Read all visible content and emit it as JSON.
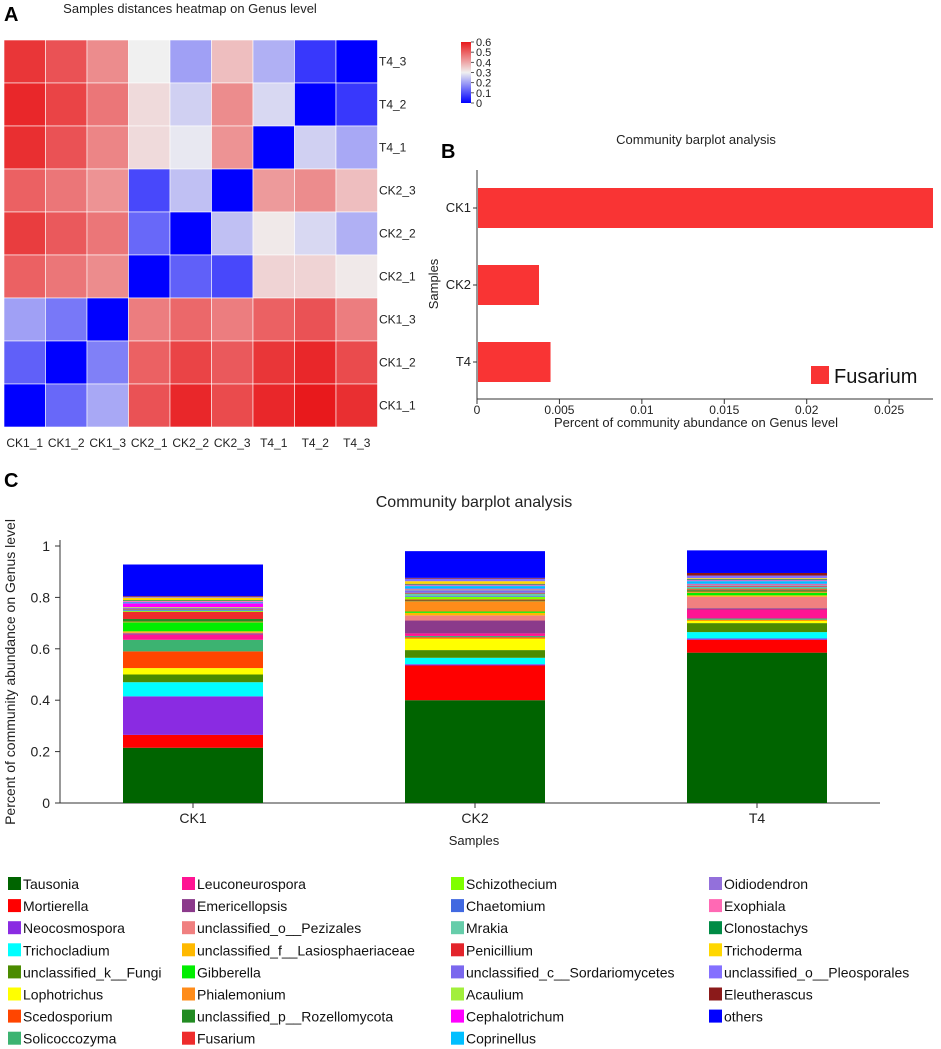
{
  "panels": {
    "a": {
      "letter": "A"
    },
    "b": {
      "letter": "B"
    },
    "c": {
      "letter": "C"
    }
  },
  "chart_data": [
    {
      "type": "heatmap",
      "title": "Samples distances heatmap on Genus level",
      "columns": [
        "CK1_1",
        "CK1_2",
        "CK1_3",
        "CK2_1",
        "CK2_2",
        "CK2_3",
        "T4_1",
        "T4_2",
        "T4_3"
      ],
      "rows": [
        "T4_3",
        "T4_2",
        "T4_1",
        "CK2_3",
        "CK2_2",
        "CK2_1",
        "CK1_3",
        "CK1_2",
        "CK1_1"
      ],
      "values": [
        [
          0.56,
          0.52,
          0.44,
          0.3,
          0.2,
          0.37,
          0.22,
          0.07,
          0.0
        ],
        [
          0.58,
          0.54,
          0.47,
          0.33,
          0.26,
          0.44,
          0.27,
          0.0,
          0.07
        ],
        [
          0.57,
          0.52,
          0.45,
          0.33,
          0.29,
          0.43,
          0.0,
          0.26,
          0.21
        ],
        [
          0.5,
          0.47,
          0.43,
          0.09,
          0.24,
          0.0,
          0.42,
          0.44,
          0.37
        ],
        [
          0.55,
          0.51,
          0.47,
          0.13,
          0.0,
          0.24,
          0.31,
          0.27,
          0.22
        ],
        [
          0.5,
          0.47,
          0.44,
          0.0,
          0.12,
          0.09,
          0.34,
          0.34,
          0.31
        ],
        [
          0.2,
          0.15,
          0.0,
          0.46,
          0.49,
          0.46,
          0.5,
          0.52,
          0.46
        ],
        [
          0.12,
          0.0,
          0.16,
          0.5,
          0.54,
          0.51,
          0.56,
          0.58,
          0.53
        ],
        [
          0.0,
          0.13,
          0.21,
          0.52,
          0.58,
          0.53,
          0.58,
          0.61,
          0.57
        ]
      ],
      "colorbar": {
        "min": 0,
        "max": 0.6,
        "ticks": [
          "0.6",
          "0.5",
          "0.4",
          "0.3",
          "0.2",
          "0.1",
          "0"
        ],
        "low_color": "#0000ff",
        "mid_color": "#f0f0f0",
        "high_color": "#e8191c"
      }
    },
    {
      "type": "bar",
      "orientation": "horizontal",
      "title": "Community barplot analysis",
      "categories": [
        "CK1",
        "CK2",
        "T4"
      ],
      "series": [
        {
          "name": "Fusarium",
          "values": [
            0.0276,
            0.0037,
            0.0044
          ],
          "color": "#f93434"
        }
      ],
      "xlabel": "Percent of community abundance on Genus level",
      "ylabel": "Samples",
      "xlim": [
        0,
        0.0276
      ],
      "xticks": [
        "0",
        "0.005",
        "0.01",
        "0.015",
        "0.02",
        "0.025"
      ],
      "legend_position": "bottom-right"
    },
    {
      "type": "bar",
      "stacked": true,
      "title": "Community barplot analysis",
      "categories": [
        "CK1",
        "CK2",
        "T4"
      ],
      "xlabel": "Samples",
      "ylabel": "Percent of community abundance on Genus level",
      "ylim": [
        0,
        1
      ],
      "yticks": [
        "0",
        "0.2",
        "0.4",
        "0.6",
        "0.8",
        "1"
      ],
      "legend_position": "bottom",
      "series": [
        {
          "name": "Tausonia",
          "color": "#006400",
          "values": [
            0.215,
            0.4,
            0.585
          ]
        },
        {
          "name": "Mortierella",
          "color": "#ff0000",
          "values": [
            0.05,
            0.135,
            0.05
          ]
        },
        {
          "name": "Neocosmospora",
          "color": "#8a2be2",
          "values": [
            0.15,
            0.005,
            0.005
          ]
        },
        {
          "name": "Trichocladium",
          "color": "#00ffff",
          "values": [
            0.055,
            0.025,
            0.025
          ]
        },
        {
          "name": "unclassified_k__Fungi",
          "color": "#4b8b00",
          "values": [
            0.03,
            0.03,
            0.035
          ]
        },
        {
          "name": "Lophotrichus",
          "color": "#ffff00",
          "values": [
            0.025,
            0.045,
            0.01
          ]
        },
        {
          "name": "Scedosporium",
          "color": "#ff4500",
          "values": [
            0.065,
            0.005,
            0.003
          ]
        },
        {
          "name": "Solicoccozyma",
          "color": "#3cb371",
          "values": [
            0.045,
            0.005,
            0.005
          ]
        },
        {
          "name": "Leuconeurospora",
          "color": "#ff1493",
          "values": [
            0.02,
            0.01,
            0.035
          ]
        },
        {
          "name": "Emericellopsis",
          "color": "#8b3a8b",
          "values": [
            0.005,
            0.05,
            0.005
          ]
        },
        {
          "name": "unclassified_o__Pezizales",
          "color": "#f08080",
          "values": [
            0.003,
            0.02,
            0.045
          ]
        },
        {
          "name": "unclassified_f__Lasiosphaeriaceae",
          "color": "#ffb900",
          "values": [
            0.005,
            0.01,
            0.005
          ]
        },
        {
          "name": "Gibberella",
          "color": "#00ee00",
          "values": [
            0.035,
            0.005,
            0.01
          ]
        },
        {
          "name": "Phialemonium",
          "color": "#ff8c1a",
          "values": [
            0.003,
            0.04,
            0.005
          ]
        },
        {
          "name": "unclassified_p__Rozellomycota",
          "color": "#228b22",
          "values": [
            0.01,
            0.003,
            0.005
          ]
        },
        {
          "name": "Fusarium",
          "color": "#ee2c2c",
          "values": [
            0.028,
            0.004,
            0.004
          ]
        },
        {
          "name": "Schizothecium",
          "color": "#7fff00",
          "values": [
            0.003,
            0.01,
            0.003
          ]
        },
        {
          "name": "Chaetomium",
          "color": "#4169e1",
          "values": [
            0.003,
            0.003,
            0.003
          ]
        },
        {
          "name": "Mrakia",
          "color": "#66cdaa",
          "values": [
            0.003,
            0.01,
            0.003
          ]
        },
        {
          "name": "Penicillium",
          "color": "#e3242b",
          "values": [
            0.003,
            0.003,
            0.003
          ]
        },
        {
          "name": "unclassified_c__Sordariomycetes",
          "color": "#7b68ee",
          "values": [
            0.003,
            0.01,
            0.003
          ]
        },
        {
          "name": "Acaulium",
          "color": "#a2ef3c",
          "values": [
            0.003,
            0.003,
            0.003
          ]
        },
        {
          "name": "Cephalotrichum",
          "color": "#ff00ff",
          "values": [
            0.015,
            0.003,
            0.003
          ]
        },
        {
          "name": "Coprinellus",
          "color": "#00bfff",
          "values": [
            0.003,
            0.01,
            0.01
          ]
        },
        {
          "name": "Oidiodendron",
          "color": "#9370db",
          "values": [
            0.003,
            0.003,
            0.003
          ]
        },
        {
          "name": "Exophiala",
          "color": "#ff69b4",
          "values": [
            0.003,
            0.003,
            0.003
          ]
        },
        {
          "name": "Clonostachys",
          "color": "#008b45",
          "values": [
            0.003,
            0.003,
            0.003
          ]
        },
        {
          "name": "Trichoderma",
          "color": "#ffd700",
          "values": [
            0.01,
            0.01,
            0.003
          ]
        },
        {
          "name": "unclassified_o__Pleosporales",
          "color": "#8470ff",
          "values": [
            0.003,
            0.01,
            0.01
          ]
        },
        {
          "name": "Eleutherascus",
          "color": "#8b1a1a",
          "values": [
            0.003,
            0.003,
            0.01
          ]
        },
        {
          "name": "others",
          "color": "#0000ff",
          "values": [
            0.123,
            0.104,
            0.088
          ]
        }
      ]
    }
  ]
}
